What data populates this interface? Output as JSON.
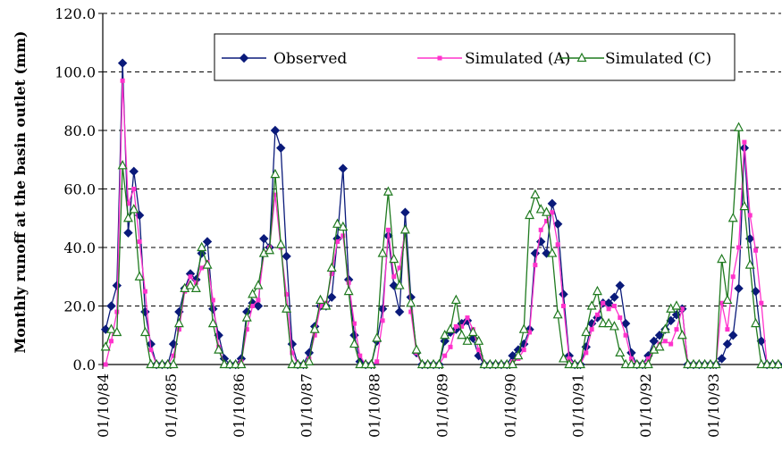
{
  "chart_data": {
    "type": "line",
    "ylabel": "Monthly runoff at the basin outlet (mm)",
    "xlabel": "",
    "ylim": [
      0,
      120
    ],
    "yticks": [
      "0.0",
      "20.0",
      "40.0",
      "60.0",
      "80.0",
      "100.0",
      "120.0"
    ],
    "grid": "horizontal dashed",
    "legend_position": "top-right",
    "x_tick_labels": [
      "01/10/84",
      "01/10/85",
      "01/10/86",
      "01/10/87",
      "01/10/88",
      "01/10/89",
      "01/10/90",
      "01/10/91",
      "01/10/92",
      "01/10/93"
    ],
    "months_per_tick": 12,
    "series": [
      {
        "name": "Observed",
        "color": "#0a1a7a",
        "marker": "diamond",
        "values": [
          12,
          20,
          27,
          103,
          45,
          66,
          51,
          18,
          7,
          0,
          0,
          0,
          7,
          18,
          26,
          31,
          29,
          38,
          42,
          19,
          10,
          2,
          0,
          0,
          2,
          18,
          21,
          20,
          43,
          40,
          80,
          74,
          37,
          7,
          0,
          0,
          4,
          13,
          20,
          20,
          23,
          43,
          67,
          29,
          10,
          1,
          0,
          0,
          8,
          19,
          44,
          27,
          18,
          52,
          23,
          4,
          0,
          0,
          0,
          0,
          8,
          11,
          12,
          14,
          15,
          9,
          3,
          0,
          0,
          0,
          0,
          0,
          3,
          5,
          7,
          12,
          38,
          42,
          38,
          55,
          48,
          24,
          3,
          0,
          0,
          6,
          14,
          16,
          21,
          21,
          23,
          27,
          14,
          4,
          0,
          0,
          3,
          8,
          10,
          12,
          15,
          17,
          19,
          0,
          0,
          0,
          0,
          0,
          0,
          2,
          7,
          10,
          26,
          74,
          43,
          25,
          8,
          0,
          0,
          0
        ]
      },
      {
        "name": "Simulated (A)",
        "color": "#ff33cc",
        "marker": "square",
        "values": [
          0,
          8,
          18,
          97,
          55,
          60,
          42,
          25,
          5,
          0,
          0,
          0,
          3,
          12,
          25,
          30,
          28,
          33,
          35,
          22,
          6,
          0,
          0,
          0,
          1,
          12,
          20,
          22,
          38,
          40,
          58,
          40,
          24,
          4,
          0,
          0,
          2,
          10,
          20,
          21,
          31,
          42,
          44,
          28,
          14,
          3,
          0,
          0,
          1,
          15,
          46,
          30,
          33,
          46,
          18,
          4,
          0,
          0,
          0,
          0,
          3,
          6,
          13,
          13,
          16,
          12,
          5,
          0,
          0,
          0,
          0,
          0,
          1,
          2,
          5,
          11,
          34,
          46,
          49,
          52,
          41,
          20,
          2,
          0,
          0,
          4,
          12,
          17,
          21,
          19,
          20,
          16,
          10,
          2,
          0,
          0,
          2,
          5,
          7,
          8,
          7,
          12,
          19,
          0,
          0,
          0,
          0,
          0,
          0,
          21,
          12,
          30,
          40,
          76,
          51,
          39,
          21,
          0,
          0,
          0
        ]
      },
      {
        "name": "Simulated (C)",
        "color": "#1f7a1f",
        "marker": "triangle",
        "values": [
          6,
          12,
          11,
          68,
          50,
          53,
          30,
          11,
          0,
          0,
          0,
          0,
          0,
          14,
          26,
          27,
          26,
          40,
          34,
          14,
          5,
          0,
          0,
          0,
          0,
          16,
          24,
          27,
          38,
          39,
          65,
          41,
          19,
          0,
          0,
          0,
          1,
          12,
          22,
          20,
          33,
          48,
          47,
          25,
          7,
          0,
          0,
          0,
          9,
          38,
          59,
          36,
          27,
          46,
          21,
          5,
          0,
          0,
          0,
          0,
          10,
          12,
          22,
          10,
          8,
          11,
          8,
          0,
          0,
          0,
          0,
          0,
          0,
          3,
          12,
          51,
          58,
          53,
          52,
          38,
          17,
          2,
          0,
          0,
          0,
          11,
          20,
          25,
          14,
          14,
          13,
          4,
          0,
          0,
          0,
          0,
          0,
          5,
          6,
          12,
          19,
          20,
          10,
          0,
          0,
          0,
          0,
          0,
          0,
          36,
          22,
          50,
          81,
          54,
          34,
          14,
          0,
          0,
          0,
          0
        ]
      }
    ]
  }
}
